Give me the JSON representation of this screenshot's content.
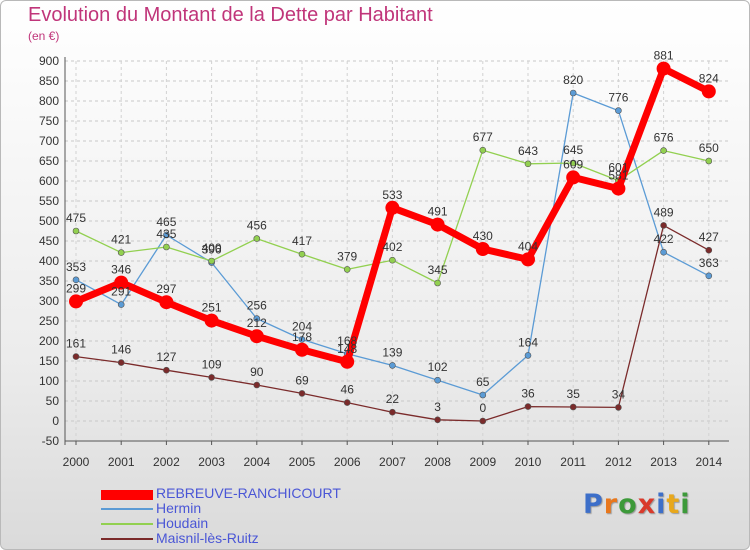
{
  "title": "Evolution du Montant de la Dette par Habitant",
  "unit": "(en €)",
  "logo": {
    "text": "Proxiti",
    "letter_colors": [
      "#3d6fc9",
      "#e8771c",
      "#3d9a3a",
      "#d93a2b",
      "#3d6fc9",
      "#e8a81c",
      "#3d9a3a"
    ]
  },
  "chart_data": {
    "type": "line",
    "title": "Evolution du Montant de la Dette par Habitant",
    "ylabel": "(en €)",
    "x": [
      "2000",
      "2001",
      "2002",
      "2003",
      "2004",
      "2005",
      "2006",
      "2007",
      "2008",
      "2009",
      "2010",
      "2011",
      "2012",
      "2013",
      "2014"
    ],
    "ylim": [
      -50,
      900
    ],
    "yticks": [
      -50,
      0,
      50,
      100,
      150,
      200,
      250,
      300,
      350,
      400,
      450,
      500,
      550,
      600,
      650,
      700,
      750,
      800,
      850,
      900
    ],
    "grid": true,
    "legend_position": "bottom-left",
    "series": [
      {
        "name": "REBREUVE-RANCHICOURT",
        "color": "#ff0000",
        "values": [
          299,
          346,
          297,
          251,
          212,
          178,
          148,
          533,
          491,
          430,
          404,
          609,
          581,
          881,
          824
        ],
        "labels": [
          "299",
          "346",
          "297",
          "251",
          "212",
          "178",
          "148",
          "533",
          "491",
          "430",
          "404",
          "609",
          "581",
          "881",
          "824"
        ]
      },
      {
        "name": "Hermin",
        "color": "#5b9bd5",
        "values": [
          353,
          291,
          465,
          396,
          256,
          204,
          168,
          139,
          102,
          65,
          164,
          820,
          776,
          422,
          363
        ],
        "labels": [
          "353",
          "291",
          "465",
          "396",
          "256",
          "204",
          "168",
          "139",
          "102",
          "65",
          "164",
          "820",
          "776",
          "422",
          "363"
        ]
      },
      {
        "name": "Houdain",
        "color": "#92d050",
        "values": [
          475,
          421,
          435,
          400,
          456,
          417,
          379,
          402,
          345,
          677,
          643,
          645,
          601,
          676,
          650
        ],
        "labels": [
          "475",
          "421",
          "435",
          "400",
          "456",
          "417",
          "379",
          "402",
          "345",
          "677",
          "643",
          "645",
          "601",
          "676",
          "650"
        ]
      },
      {
        "name": "Maisnil-lès-Ruitz",
        "color": "#7b2b2b",
        "values": [
          161,
          146,
          127,
          109,
          90,
          69,
          46,
          22,
          3,
          0,
          36,
          35,
          34,
          489,
          427
        ],
        "labels": [
          "161",
          "146",
          "127",
          "109",
          "90",
          "69",
          "46",
          "22",
          "3",
          "0",
          "36",
          "35",
          "34",
          "489",
          "427"
        ]
      }
    ]
  }
}
